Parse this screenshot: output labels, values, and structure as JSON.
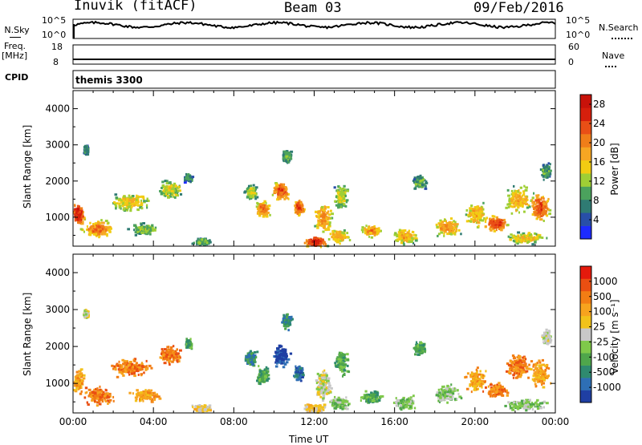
{
  "header": {
    "radar": "Inuvik (fitACF)",
    "beam": "Beam 03",
    "date": "09/Feb/2016"
  },
  "top_panels": {
    "nsky_label": "N.Sky",
    "nsky_ticks": [
      "10^5",
      "10^0"
    ],
    "nsearch_label": "N.Search",
    "nsearch_ticks": [
      "10^5",
      "10^0"
    ],
    "freq_label_1": "Freq.",
    "freq_label_2": "[MHz]",
    "freq_ticks": [
      "18",
      "8"
    ],
    "nave_label": "Nave",
    "nave_ticks": [
      "60",
      "0"
    ],
    "cpid_label": "CPID",
    "cpid_value": "themis 3300",
    "noise_level": 0.7,
    "freq_level_mhz": 10.5,
    "nave_level": 20
  },
  "chart_data": [
    {
      "type": "heatmap",
      "name": "power",
      "ylabel": "Slant Range [km]",
      "yticks": [
        1000,
        2000,
        3000,
        4000
      ],
      "ylim": [
        200,
        4500
      ],
      "xlim": [
        0,
        24
      ],
      "colorbar": {
        "label": "Power [dB]",
        "ticks": [
          "4",
          "8",
          "12",
          "16",
          "20",
          "24",
          "28"
        ],
        "range": [
          0,
          30
        ],
        "colors": [
          "#1d2bff",
          "#284fa8",
          "#2f7b73",
          "#4ba25d",
          "#9fcf35",
          "#f2cc12",
          "#f6a623",
          "#f07e19",
          "#e94f16",
          "#d71f0c",
          "#c8120a"
        ]
      },
      "blobs": [
        {
          "t": 0.2,
          "r": 1100,
          "dt": 0.35,
          "dr": 400,
          "amp": 28
        },
        {
          "t": 0.6,
          "r": 2900,
          "dt": 0.15,
          "dr": 150,
          "amp": 8
        },
        {
          "t": 1.2,
          "r": 700,
          "dt": 0.9,
          "dr": 280,
          "amp": 22
        },
        {
          "t": 2.8,
          "r": 1450,
          "dt": 1.2,
          "dr": 300,
          "amp": 16
        },
        {
          "t": 3.5,
          "r": 700,
          "dt": 0.9,
          "dr": 200,
          "amp": 12
        },
        {
          "t": 4.8,
          "r": 1800,
          "dt": 0.7,
          "dr": 300,
          "amp": 14
        },
        {
          "t": 5.7,
          "r": 2100,
          "dt": 0.25,
          "dr": 150,
          "amp": 8
        },
        {
          "t": 6.4,
          "r": 350,
          "dt": 0.6,
          "dr": 120,
          "amp": 10
        },
        {
          "t": 8.8,
          "r": 1700,
          "dt": 0.35,
          "dr": 250,
          "amp": 14
        },
        {
          "t": 9.4,
          "r": 1250,
          "dt": 0.4,
          "dr": 280,
          "amp": 22
        },
        {
          "t": 10.3,
          "r": 1750,
          "dt": 0.5,
          "dr": 350,
          "amp": 24
        },
        {
          "t": 10.6,
          "r": 2700,
          "dt": 0.3,
          "dr": 250,
          "amp": 10
        },
        {
          "t": 11.2,
          "r": 1300,
          "dt": 0.3,
          "dr": 250,
          "amp": 26
        },
        {
          "t": 12.0,
          "r": 350,
          "dt": 0.7,
          "dr": 180,
          "amp": 28
        },
        {
          "t": 12.4,
          "r": 1000,
          "dt": 0.5,
          "dr": 500,
          "amp": 20
        },
        {
          "t": 13.3,
          "r": 1600,
          "dt": 0.4,
          "dr": 400,
          "amp": 14
        },
        {
          "t": 13.2,
          "r": 500,
          "dt": 0.6,
          "dr": 250,
          "amp": 18
        },
        {
          "t": 14.8,
          "r": 650,
          "dt": 0.6,
          "dr": 200,
          "amp": 20
        },
        {
          "t": 16.5,
          "r": 500,
          "dt": 0.7,
          "dr": 250,
          "amp": 18
        },
        {
          "t": 17.2,
          "r": 2000,
          "dt": 0.4,
          "dr": 250,
          "amp": 10
        },
        {
          "t": 18.6,
          "r": 750,
          "dt": 0.8,
          "dr": 300,
          "amp": 20
        },
        {
          "t": 20.0,
          "r": 1100,
          "dt": 0.6,
          "dr": 400,
          "amp": 18
        },
        {
          "t": 21.0,
          "r": 850,
          "dt": 0.7,
          "dr": 250,
          "amp": 26
        },
        {
          "t": 22.1,
          "r": 1500,
          "dt": 0.8,
          "dr": 450,
          "amp": 18
        },
        {
          "t": 23.2,
          "r": 1300,
          "dt": 0.6,
          "dr": 450,
          "amp": 24
        },
        {
          "t": 23.5,
          "r": 2300,
          "dt": 0.3,
          "dr": 250,
          "amp": 10
        },
        {
          "t": 22.5,
          "r": 450,
          "dt": 1.2,
          "dr": 200,
          "amp": 16
        }
      ]
    },
    {
      "type": "heatmap",
      "name": "velocity",
      "ylabel": "Slant Range [km]",
      "yticks": [
        1000,
        2000,
        3000,
        4000
      ],
      "ylim": [
        200,
        4500
      ],
      "xlim": [
        0,
        24
      ],
      "xlabel": "Time UT",
      "xticks": [
        "00:00",
        "04:00",
        "08:00",
        "12:00",
        "16:00",
        "20:00",
        "00:00"
      ],
      "colorbar": {
        "label": "Velocity [m s⁻¹]",
        "ticks": [
          "1000",
          "500",
          "100",
          "25",
          "-25",
          "-100",
          "-500",
          "-1000"
        ],
        "colors": [
          "#1f3fa3",
          "#2e6fb5",
          "#2f8a6f",
          "#4fa64b",
          "#7fc94a",
          "#c8c8c8",
          "#f2c21a",
          "#f7a31e",
          "#f27d14",
          "#ea4f12",
          "#e51a0c"
        ]
      },
      "blobs": [
        {
          "t": 0.2,
          "r": 1100,
          "dt": 0.35,
          "dr": 400,
          "amp": 7
        },
        {
          "t": 0.6,
          "r": 2900,
          "dt": 0.15,
          "dr": 150,
          "amp": 5
        },
        {
          "t": 1.2,
          "r": 700,
          "dt": 0.9,
          "dr": 280,
          "amp": 8
        },
        {
          "t": 2.8,
          "r": 1450,
          "dt": 1.2,
          "dr": 300,
          "amp": 8
        },
        {
          "t": 3.5,
          "r": 700,
          "dt": 0.9,
          "dr": 200,
          "amp": 7
        },
        {
          "t": 4.8,
          "r": 1800,
          "dt": 0.7,
          "dr": 300,
          "amp": 8
        },
        {
          "t": 5.7,
          "r": 2100,
          "dt": 0.25,
          "dr": 150,
          "amp": 3
        },
        {
          "t": 6.4,
          "r": 350,
          "dt": 0.6,
          "dr": 120,
          "amp": 6
        },
        {
          "t": 8.8,
          "r": 1700,
          "dt": 0.35,
          "dr": 250,
          "amp": 2
        },
        {
          "t": 9.4,
          "r": 1250,
          "dt": 0.4,
          "dr": 280,
          "amp": 3
        },
        {
          "t": 10.3,
          "r": 1750,
          "dt": 0.5,
          "dr": 350,
          "amp": 0
        },
        {
          "t": 10.6,
          "r": 2700,
          "dt": 0.3,
          "dr": 250,
          "amp": 2
        },
        {
          "t": 11.2,
          "r": 1300,
          "dt": 0.3,
          "dr": 250,
          "amp": 1
        },
        {
          "t": 12.0,
          "r": 350,
          "dt": 0.7,
          "dr": 180,
          "amp": 6
        },
        {
          "t": 12.4,
          "r": 1000,
          "dt": 0.5,
          "dr": 500,
          "amp": 5
        },
        {
          "t": 13.3,
          "r": 1600,
          "dt": 0.4,
          "dr": 400,
          "amp": 3
        },
        {
          "t": 13.2,
          "r": 500,
          "dt": 0.6,
          "dr": 250,
          "amp": 4
        },
        {
          "t": 14.8,
          "r": 650,
          "dt": 0.6,
          "dr": 200,
          "amp": 3
        },
        {
          "t": 16.5,
          "r": 500,
          "dt": 0.7,
          "dr": 250,
          "amp": 4
        },
        {
          "t": 17.2,
          "r": 2000,
          "dt": 0.4,
          "dr": 250,
          "amp": 3
        },
        {
          "t": 18.6,
          "r": 750,
          "dt": 0.8,
          "dr": 300,
          "amp": 4
        },
        {
          "t": 20.0,
          "r": 1100,
          "dt": 0.6,
          "dr": 400,
          "amp": 7
        },
        {
          "t": 21.0,
          "r": 850,
          "dt": 0.7,
          "dr": 250,
          "amp": 8
        },
        {
          "t": 22.1,
          "r": 1500,
          "dt": 0.8,
          "dr": 450,
          "amp": 8
        },
        {
          "t": 23.2,
          "r": 1300,
          "dt": 0.6,
          "dr": 450,
          "amp": 7
        },
        {
          "t": 23.5,
          "r": 2300,
          "dt": 0.3,
          "dr": 250,
          "amp": 5
        },
        {
          "t": 22.5,
          "r": 450,
          "dt": 1.2,
          "dr": 200,
          "amp": 4
        }
      ]
    }
  ]
}
